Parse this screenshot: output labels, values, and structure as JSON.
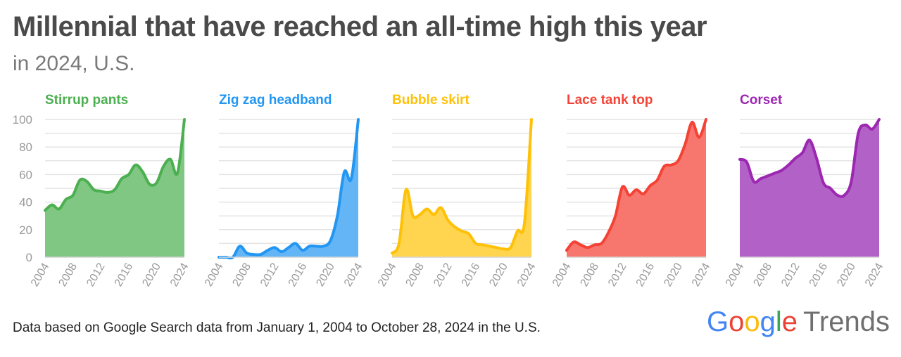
{
  "header": {
    "title": "Millennial that have reached an all-time high this year",
    "subtitle": "in 2024, U.S."
  },
  "footer": {
    "note": "Data based on Google Search data from January 1, 2004 to October 28, 2024 in the U.S."
  },
  "brand": {
    "google_letters": [
      "G",
      "o",
      "o",
      "g",
      "l",
      "e"
    ],
    "trends": "Trends"
  },
  "chart_data": [
    {
      "type": "area",
      "title": "Stirrup pants",
      "color": "#4caf50",
      "fill": "#81c784",
      "x": [
        2004,
        2005,
        2006,
        2007,
        2008,
        2009,
        2010,
        2011,
        2012,
        2013,
        2014,
        2015,
        2016,
        2017,
        2018,
        2019,
        2020,
        2021,
        2022,
        2023,
        2024
      ],
      "values": [
        34,
        38,
        35,
        42,
        45,
        56,
        55,
        49,
        48,
        47,
        49,
        57,
        60,
        67,
        62,
        53,
        54,
        66,
        71,
        61,
        100
      ],
      "ylim": [
        0,
        100
      ],
      "yticks": [
        0,
        20,
        40,
        60,
        80,
        100
      ],
      "xticks": [
        2004,
        2008,
        2012,
        2016,
        2020,
        2024
      ]
    },
    {
      "type": "area",
      "title": "Zig zag headband",
      "color": "#2196f3",
      "fill": "#64b5f6",
      "x": [
        2004,
        2005,
        2006,
        2007,
        2008,
        2009,
        2010,
        2011,
        2012,
        2013,
        2014,
        2015,
        2016,
        2017,
        2018,
        2019,
        2020,
        2021,
        2022,
        2023,
        2024
      ],
      "values": [
        0,
        0,
        0,
        8,
        3,
        2,
        2,
        5,
        7,
        4,
        7,
        10,
        5,
        8,
        8,
        8,
        12,
        30,
        62,
        57,
        100
      ],
      "ylim": [
        0,
        100
      ],
      "yticks": [
        0,
        20,
        40,
        60,
        80,
        100
      ],
      "xticks": [
        2004,
        2008,
        2012,
        2016,
        2020,
        2024
      ]
    },
    {
      "type": "area",
      "title": "Bubble skirt",
      "color": "#ffc107",
      "fill": "#ffd54f",
      "x": [
        2004,
        2005,
        2006,
        2007,
        2008,
        2009,
        2010,
        2011,
        2012,
        2013,
        2014,
        2015,
        2016,
        2017,
        2018,
        2019,
        2020,
        2021,
        2022,
        2023,
        2024
      ],
      "values": [
        3,
        10,
        49,
        30,
        31,
        35,
        31,
        36,
        27,
        22,
        19,
        17,
        10,
        9,
        8,
        7,
        6,
        7,
        19,
        25,
        100
      ],
      "ylim": [
        0,
        100
      ],
      "yticks": [
        0,
        20,
        40,
        60,
        80,
        100
      ],
      "xticks": [
        2004,
        2008,
        2012,
        2016,
        2020,
        2024
      ]
    },
    {
      "type": "area",
      "title": "Lace tank top",
      "color": "#f44336",
      "fill": "#f7776e",
      "x": [
        2004,
        2005,
        2006,
        2007,
        2008,
        2009,
        2010,
        2011,
        2012,
        2013,
        2014,
        2015,
        2016,
        2017,
        2018,
        2019,
        2020,
        2021,
        2022,
        2023,
        2024
      ],
      "values": [
        5,
        11,
        9,
        7,
        9,
        10,
        18,
        30,
        51,
        45,
        49,
        46,
        52,
        56,
        66,
        67,
        70,
        82,
        98,
        87,
        100
      ],
      "ylim": [
        0,
        100
      ],
      "yticks": [
        0,
        20,
        40,
        60,
        80,
        100
      ],
      "xticks": [
        2004,
        2008,
        2012,
        2016,
        2020,
        2024
      ]
    },
    {
      "type": "area",
      "title": "Corset",
      "color": "#9c27b0",
      "fill": "#b262c7",
      "x": [
        2004,
        2005,
        2006,
        2007,
        2008,
        2009,
        2010,
        2011,
        2012,
        2013,
        2014,
        2015,
        2016,
        2017,
        2018,
        2019,
        2020,
        2021,
        2022,
        2023,
        2024
      ],
      "values": [
        71,
        69,
        55,
        57,
        59,
        61,
        63,
        67,
        72,
        76,
        85,
        72,
        54,
        50,
        45,
        45,
        55,
        90,
        96,
        93,
        100
      ],
      "ylim": [
        0,
        100
      ],
      "yticks": [
        0,
        20,
        40,
        60,
        80,
        100
      ],
      "xticks": [
        2004,
        2008,
        2012,
        2016,
        2020,
        2024
      ]
    }
  ]
}
